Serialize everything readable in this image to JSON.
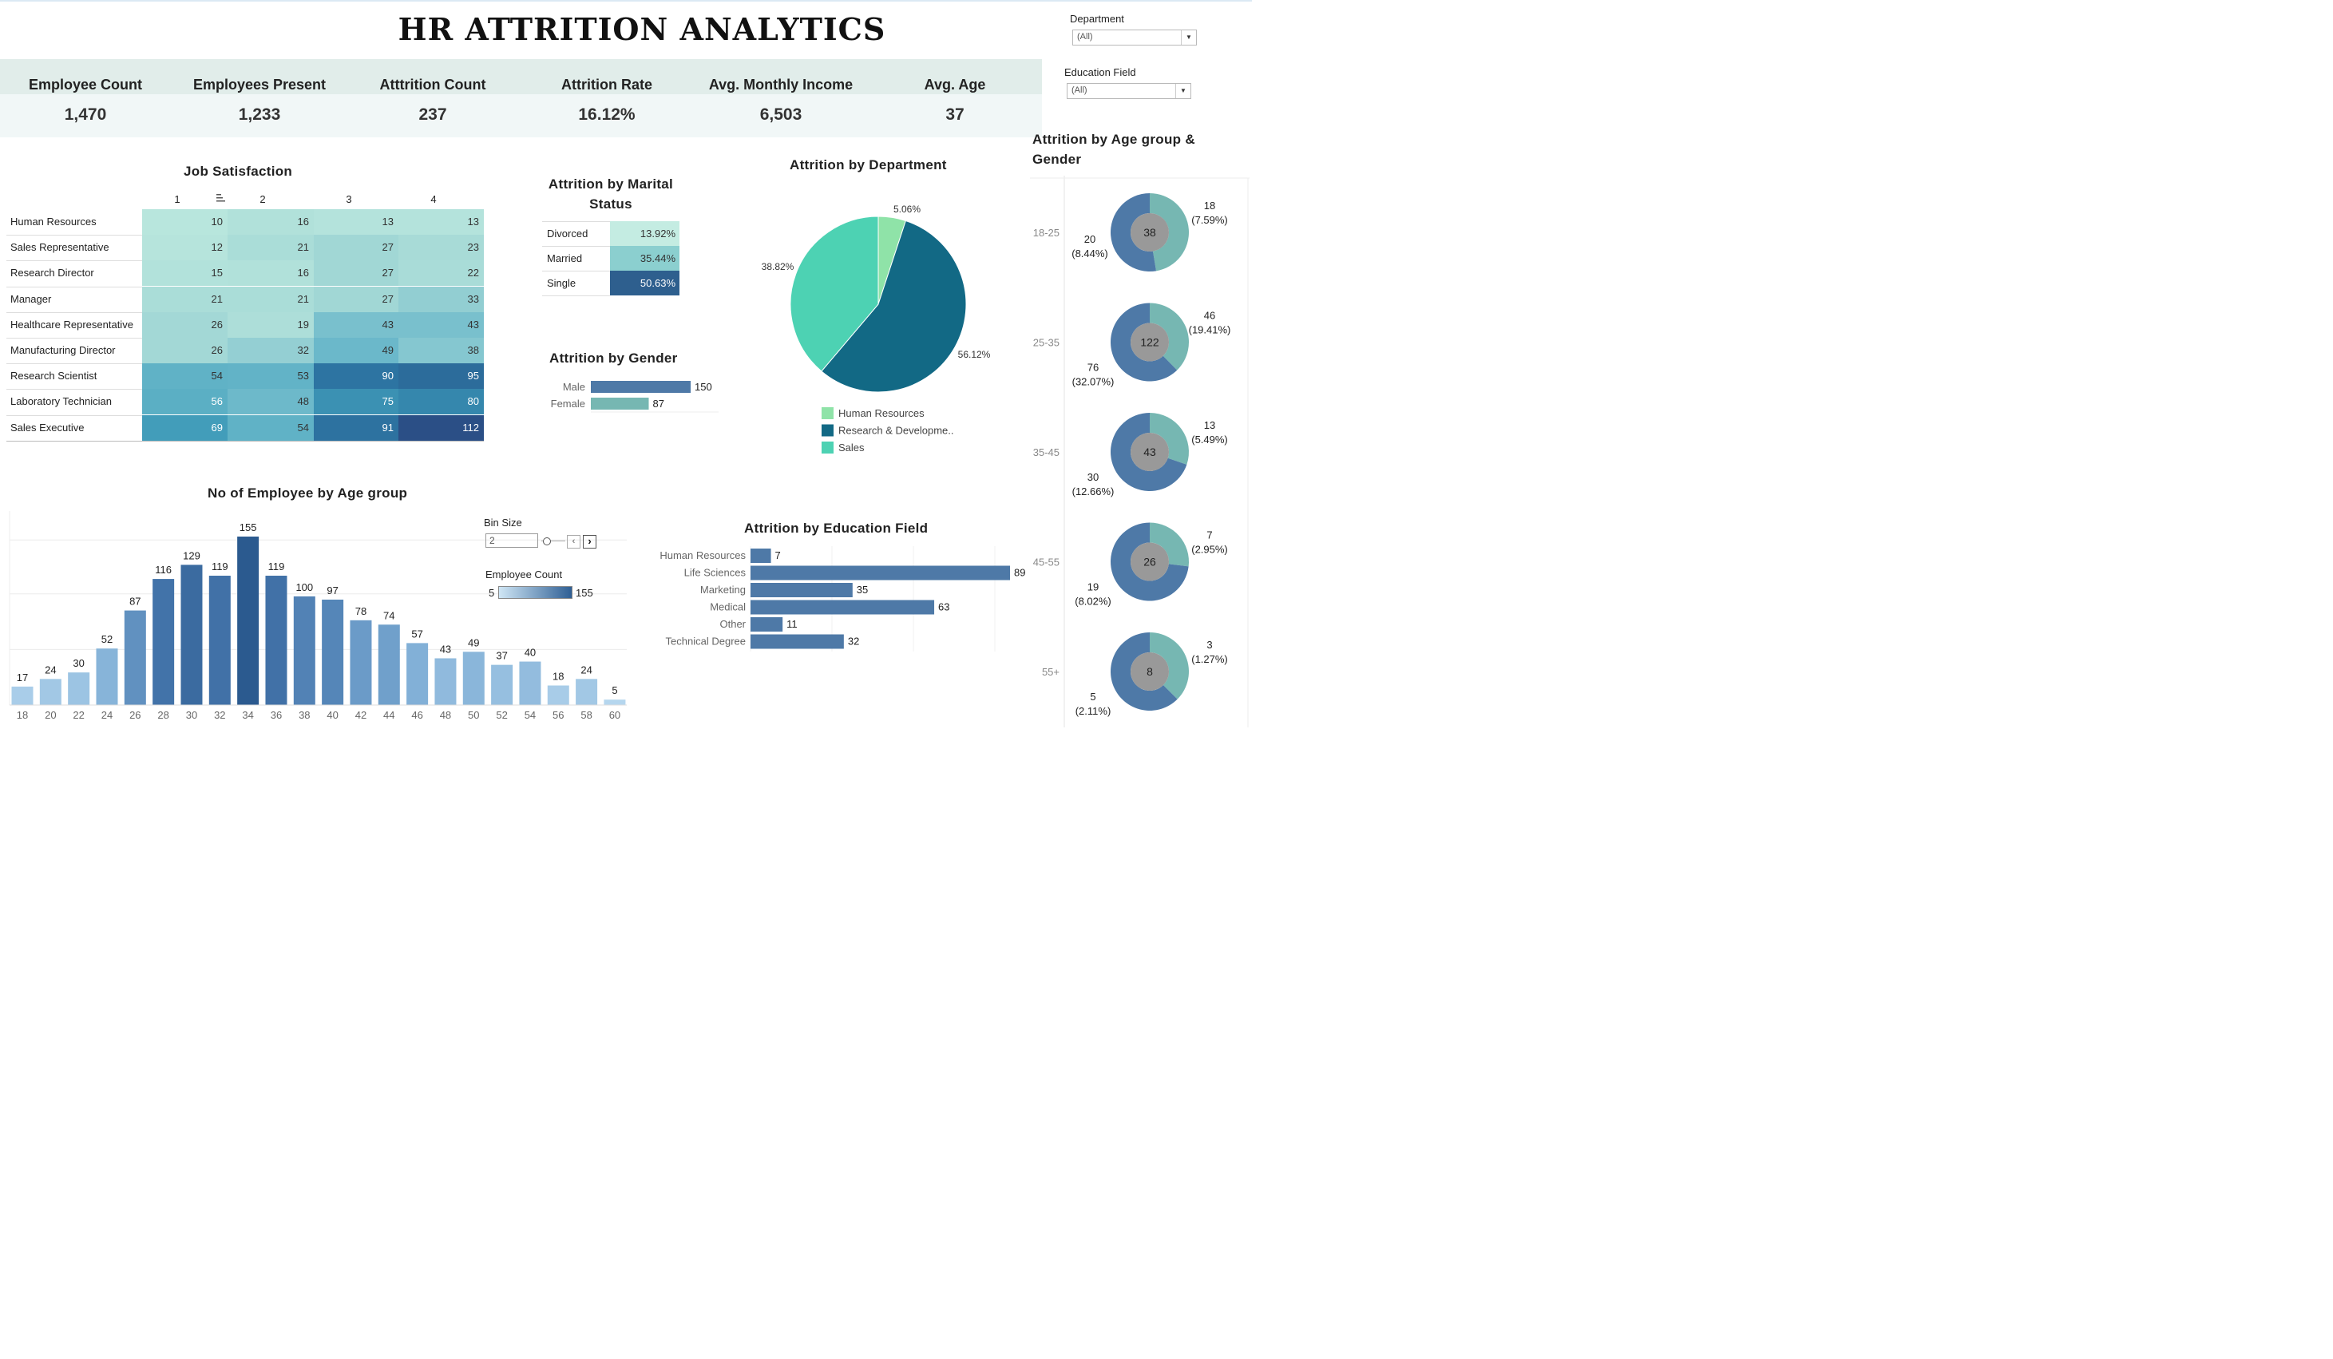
{
  "title": "HR ATTRITION ANALYTICS",
  "filters": {
    "department": {
      "label": "Department",
      "value": "(All)"
    },
    "education_field": {
      "label": "Education Field",
      "value": "(All)"
    }
  },
  "kpis": [
    {
      "label": "Employee Count",
      "value": "1,470"
    },
    {
      "label": "Employees Present",
      "value": "1,233"
    },
    {
      "label": "Atttrition Count",
      "value": "237"
    },
    {
      "label": "Attrition Rate",
      "value": "16.12%"
    },
    {
      "label": "Avg. Monthly Income",
      "value": "6,503"
    },
    {
      "label": "Avg. Age",
      "value": "37"
    }
  ],
  "bin_size": {
    "label": "Bin Size",
    "value": "2"
  },
  "legend_employee_count": {
    "label": "Employee Count",
    "min": "5",
    "max": "155"
  },
  "colors": {
    "kpi_header": "#e1edea",
    "kpi_values": "#f1f7f7",
    "hr_green": "#8fe3a8",
    "rnd_teal": "#126985",
    "sales_mint": "#4dd2b3",
    "male": "#4e79a7",
    "female": "#76b7b2",
    "donut_inner": "#999999"
  },
  "chart_data": [
    {
      "id": "job_satisfaction",
      "type": "heatmap",
      "title": "Job Satisfaction",
      "columns": [
        "1",
        "2",
        "3",
        "4"
      ],
      "rows": [
        "Human Resources",
        "Sales Representative",
        "Research Director",
        "Manager",
        "Healthcare Representative",
        "Manufacturing Director",
        "Research Scientist",
        "Laboratory Technician",
        "Sales Executive"
      ],
      "values": [
        [
          10,
          16,
          13,
          13
        ],
        [
          12,
          21,
          27,
          23
        ],
        [
          15,
          16,
          27,
          22
        ],
        [
          21,
          21,
          27,
          33
        ],
        [
          26,
          19,
          43,
          43
        ],
        [
          26,
          32,
          49,
          38
        ],
        [
          54,
          53,
          90,
          95
        ],
        [
          56,
          48,
          75,
          80
        ],
        [
          69,
          54,
          91,
          112
        ]
      ]
    },
    {
      "id": "marital_status",
      "type": "table",
      "title": "Attrition by Marital Status",
      "categories": [
        "Divorced",
        "Married",
        "Single"
      ],
      "values": [
        13.92,
        35.44,
        50.63
      ],
      "labels": [
        "13.92%",
        "35.44%",
        "50.63%"
      ]
    },
    {
      "id": "gender",
      "type": "bar",
      "title": "Attrition by Gender",
      "categories": [
        "Male",
        "Female"
      ],
      "values": [
        150,
        87
      ]
    },
    {
      "id": "department",
      "type": "pie",
      "title": "Attrition by Department",
      "categories": [
        "Human Resources",
        "Research & Developme..",
        "Sales"
      ],
      "values": [
        5.06,
        56.12,
        38.82
      ],
      "labels": [
        "5.06%",
        "56.12%",
        "38.82%"
      ],
      "legend": "bottom"
    },
    {
      "id": "age_group",
      "type": "bar",
      "title": "No of Employee by Age group",
      "categories": [
        "18",
        "20",
        "22",
        "24",
        "26",
        "28",
        "30",
        "32",
        "34",
        "36",
        "38",
        "40",
        "42",
        "44",
        "46",
        "48",
        "50",
        "52",
        "54",
        "56",
        "58",
        "60"
      ],
      "values": [
        17,
        24,
        30,
        52,
        87,
        116,
        129,
        119,
        155,
        119,
        100,
        97,
        78,
        74,
        57,
        43,
        49,
        37,
        40,
        18,
        24,
        5
      ]
    },
    {
      "id": "education_field",
      "type": "bar",
      "title": "Attrition by Education Field",
      "categories": [
        "Human Resources",
        "Life Sciences",
        "Marketing",
        "Medical",
        "Other",
        "Technical Degree"
      ],
      "values": [
        7,
        89,
        35,
        63,
        11,
        32
      ]
    },
    {
      "id": "age_gender",
      "type": "pie",
      "title": "Attrition by Age group & Gender",
      "groups": [
        {
          "age": "18-25",
          "total": 38,
          "female": 18,
          "female_label": "(7.59%)",
          "male": 20,
          "male_label": "(8.44%)"
        },
        {
          "age": "25-35",
          "total": 122,
          "female": 46,
          "female_label": "(19.41%)",
          "male": 76,
          "male_label": "(32.07%)"
        },
        {
          "age": "35-45",
          "total": 43,
          "female": 13,
          "female_label": "(5.49%)",
          "male": 30,
          "male_label": "(12.66%)"
        },
        {
          "age": "45-55",
          "total": 26,
          "female": 7,
          "female_label": "(2.95%)",
          "male": 19,
          "male_label": "(8.02%)"
        },
        {
          "age": "55+",
          "total": 8,
          "female": 3,
          "female_label": "(1.27%)",
          "male": 5,
          "male_label": "(2.11%)"
        }
      ]
    }
  ]
}
